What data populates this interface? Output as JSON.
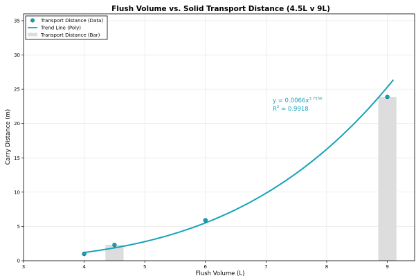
{
  "chart_data": {
    "type": "scatter",
    "title": "Flush Volume vs. Solid Transport Distance (4.5L v 9L)",
    "xlabel": "Flush Volume (L)",
    "ylabel": "Carry Distance (m)",
    "xlim": [
      3,
      9.45
    ],
    "ylim": [
      0,
      36
    ],
    "xticks": [
      3,
      4,
      5,
      6,
      7,
      8,
      9
    ],
    "yticks": [
      0,
      5,
      10,
      15,
      20,
      25,
      30,
      35
    ],
    "grid": true,
    "legend_position": "top-left",
    "series": [
      {
        "name": "Transport Distance (Data)",
        "type": "scatter",
        "color": "#17a2b8",
        "x": [
          4,
          4.5,
          6,
          9
        ],
        "y": [
          1.0,
          2.3,
          5.9,
          23.9
        ]
      },
      {
        "name": "Trend Line (Poly)",
        "type": "line",
        "color": "#17a2b8",
        "coefficient": 0.0066,
        "exponent": 3.7556,
        "x_range": [
          4,
          9.1
        ]
      },
      {
        "name": "Transport Distance (Bar)",
        "type": "bar",
        "color": "#dddddd",
        "x": [
          4.5,
          9
        ],
        "y": [
          2.3,
          23.9
        ],
        "bar_width": 0.3
      }
    ],
    "annotation": {
      "equation_prefix": "y = 0.0066x",
      "equation_exponent": "3.7556",
      "r2_prefix": "R",
      "r2_exponent": "2",
      "r2_suffix": " = 0.9918",
      "color": "#17a2b8"
    }
  }
}
